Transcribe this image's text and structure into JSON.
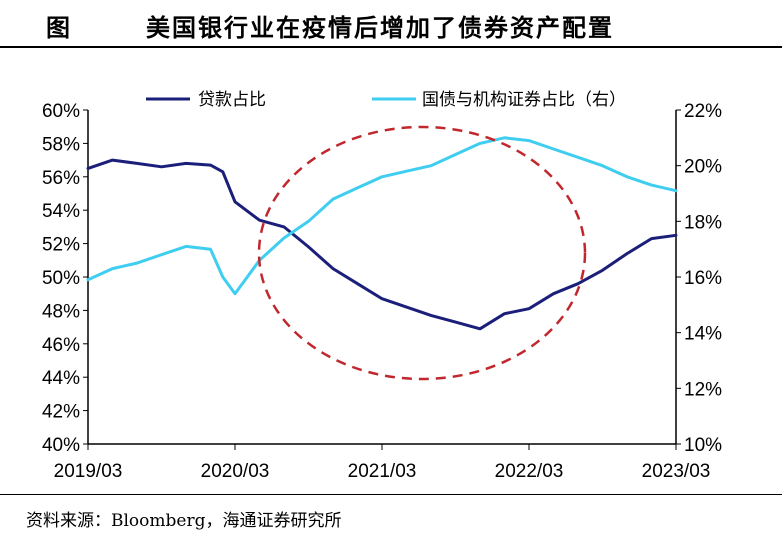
{
  "title": {
    "label": "图",
    "text": "美国银行业在疫情后增加了债券资产配置"
  },
  "source": "资料来源：Bloomberg，海通证券研究所",
  "colors": {
    "loans": "#1b1f7a",
    "securities": "#3fcdf0",
    "annotation": "#c0282e"
  },
  "chart_data": {
    "type": "line",
    "x_ticks": [
      "2019/03",
      "2020/03",
      "2021/03",
      "2022/03",
      "2023/03"
    ],
    "x_range": [
      "2019-03",
      "2023-03"
    ],
    "y_left": {
      "ticks": [
        "60%",
        "58%",
        "56%",
        "54%",
        "52%",
        "50%",
        "48%",
        "46%",
        "44%",
        "42%",
        "40%"
      ],
      "range": [
        40,
        60
      ]
    },
    "y_right": {
      "ticks": [
        "22%",
        "20%",
        "18%",
        "16%",
        "14%",
        "12%",
        "10%"
      ],
      "range": [
        10,
        22
      ]
    },
    "annotation": "dashed ellipse highlighting 2020/03–2022/03",
    "series": [
      {
        "name": "贷款占比",
        "axis": "left",
        "x": [
          "2019-03",
          "2019-05",
          "2019-07",
          "2019-09",
          "2019-11",
          "2020-01",
          "2020-02",
          "2020-03",
          "2020-05",
          "2020-07",
          "2020-09",
          "2020-11",
          "2021-01",
          "2021-03",
          "2021-05",
          "2021-07",
          "2021-09",
          "2021-11",
          "2022-01",
          "2022-03",
          "2022-05",
          "2022-07",
          "2022-09",
          "2022-11",
          "2023-01",
          "2023-03"
        ],
        "values": [
          56.5,
          57.0,
          56.8,
          56.6,
          56.8,
          56.7,
          56.3,
          54.5,
          53.4,
          53.0,
          51.8,
          50.5,
          49.6,
          48.7,
          48.2,
          47.7,
          47.3,
          46.9,
          47.8,
          48.1,
          49.0,
          49.6,
          50.4,
          51.4,
          52.3,
          52.5
        ]
      },
      {
        "name": "国债与机构证券占比（右）",
        "axis": "right",
        "x": [
          "2019-03",
          "2019-05",
          "2019-07",
          "2019-09",
          "2019-11",
          "2020-01",
          "2020-02",
          "2020-03",
          "2020-05",
          "2020-07",
          "2020-09",
          "2020-11",
          "2021-01",
          "2021-03",
          "2021-05",
          "2021-07",
          "2021-09",
          "2021-11",
          "2022-01",
          "2022-03",
          "2022-05",
          "2022-07",
          "2022-09",
          "2022-11",
          "2023-01",
          "2023-03"
        ],
        "values": [
          15.9,
          16.3,
          16.5,
          16.8,
          17.1,
          17.0,
          16.0,
          15.4,
          16.6,
          17.4,
          18.0,
          18.8,
          19.2,
          19.6,
          19.8,
          20.0,
          20.4,
          20.8,
          21.0,
          20.9,
          20.6,
          20.3,
          20.0,
          19.6,
          19.3,
          19.1
        ]
      }
    ]
  }
}
